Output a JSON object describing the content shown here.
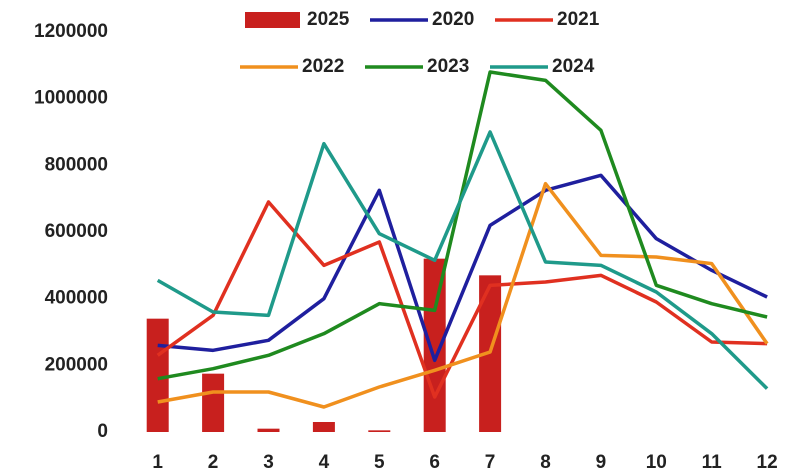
{
  "chart_data": {
    "type": "bar-line",
    "categories": [
      "1",
      "2",
      "3",
      "4",
      "5",
      "6",
      "7",
      "8",
      "9",
      "10",
      "11",
      "12"
    ],
    "series": [
      {
        "name": "2025",
        "type": "bar",
        "color": "#c8201e",
        "values": [
          340000,
          175000,
          10000,
          30000,
          5000,
          520000,
          470000,
          null,
          null,
          null,
          null,
          null
        ]
      },
      {
        "name": "2020",
        "type": "line",
        "color": "#1f1f9e",
        "values": [
          260000,
          245000,
          275000,
          400000,
          725000,
          215000,
          620000,
          725000,
          770000,
          580000,
          485000,
          405000
        ]
      },
      {
        "name": "2021",
        "type": "line",
        "color": "#e03020",
        "values": [
          230000,
          350000,
          690000,
          500000,
          570000,
          105000,
          440000,
          450000,
          470000,
          390000,
          270000,
          265000
        ]
      },
      {
        "name": "2022",
        "type": "line",
        "color": "#f0901e",
        "values": [
          90000,
          120000,
          120000,
          75000,
          135000,
          185000,
          240000,
          745000,
          530000,
          525000,
          505000,
          265000
        ]
      },
      {
        "name": "2023",
        "type": "line",
        "color": "#1f8a1f",
        "values": [
          160000,
          190000,
          230000,
          295000,
          385000,
          365000,
          1080000,
          1055000,
          905000,
          440000,
          385000,
          345000
        ]
      },
      {
        "name": "2024",
        "type": "line",
        "color": "#1f9a8a",
        "values": [
          455000,
          360000,
          350000,
          865000,
          595000,
          515000,
          900000,
          510000,
          500000,
          420000,
          295000,
          130000
        ]
      }
    ],
    "ylim": [
      0,
      1200000
    ],
    "yticks": [
      0,
      200000,
      400000,
      600000,
      800000,
      1000000,
      1200000
    ],
    "grid": false
  }
}
